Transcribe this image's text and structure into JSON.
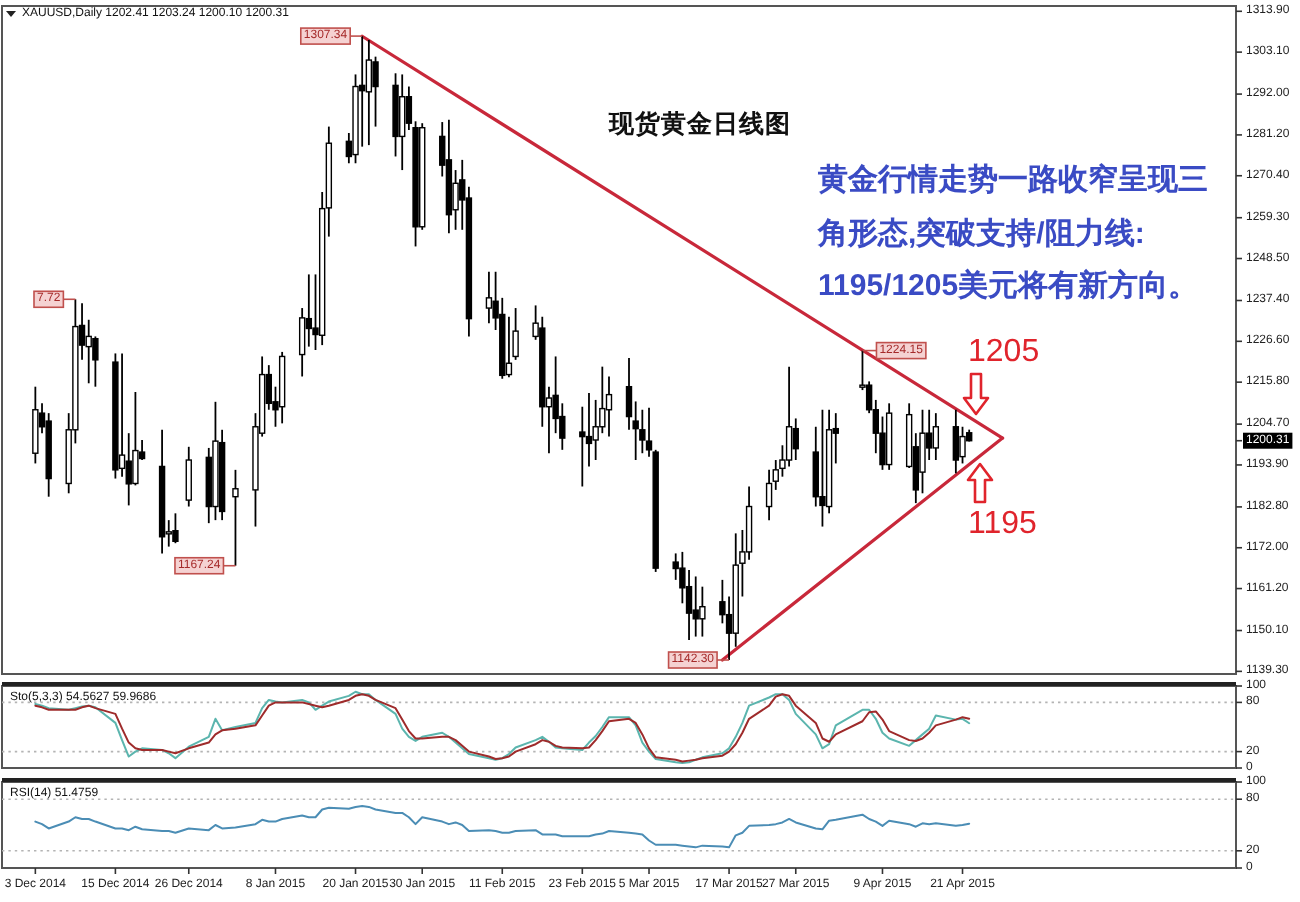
{
  "chart_data": [
    {
      "type": "candlestick",
      "title": "现货黄金日线图",
      "subtitle": "XAUUSD,Daily 1202.41 1203.24 1200.10 1200.31",
      "x": [
        "2014-12-03",
        "2014-12-04",
        "2014-12-05",
        "2014-12-08",
        "2014-12-09",
        "2014-12-10",
        "2014-12-11",
        "2014-12-12",
        "2014-12-15",
        "2014-12-16",
        "2014-12-17",
        "2014-12-18",
        "2014-12-19",
        "2014-12-22",
        "2014-12-23",
        "2014-12-24",
        "2014-12-26",
        "2014-12-29",
        "2014-12-30",
        "2014-12-31",
        "2015-01-02",
        "2015-01-05",
        "2015-01-06",
        "2015-01-07",
        "2015-01-08",
        "2015-01-09",
        "2015-01-12",
        "2015-01-13",
        "2015-01-14",
        "2015-01-15",
        "2015-01-16",
        "2015-01-19",
        "2015-01-20",
        "2015-01-21",
        "2015-01-22",
        "2015-01-23",
        "2015-01-26",
        "2015-01-27",
        "2015-01-28",
        "2015-01-29",
        "2015-01-30",
        "2015-02-02",
        "2015-02-03",
        "2015-02-04",
        "2015-02-05",
        "2015-02-06",
        "2015-02-09",
        "2015-02-10",
        "2015-02-11",
        "2015-02-12",
        "2015-02-13",
        "2015-02-16",
        "2015-02-17",
        "2015-02-18",
        "2015-02-19",
        "2015-02-20",
        "2015-02-23",
        "2015-02-24",
        "2015-02-25",
        "2015-02-26",
        "2015-02-27",
        "2015-03-02",
        "2015-03-03",
        "2015-03-04",
        "2015-03-05",
        "2015-03-06",
        "2015-03-09",
        "2015-03-10",
        "2015-03-11",
        "2015-03-12",
        "2015-03-13",
        "2015-03-16",
        "2015-03-17",
        "2015-03-18",
        "2015-03-19",
        "2015-03-20",
        "2015-03-23",
        "2015-03-24",
        "2015-03-25",
        "2015-03-26",
        "2015-03-27",
        "2015-03-30",
        "2015-03-31",
        "2015-04-01",
        "2015-04-02",
        "2015-04-06",
        "2015-04-07",
        "2015-04-08",
        "2015-04-09",
        "2015-04-10",
        "2015-04-13",
        "2015-04-14",
        "2015-04-15",
        "2015-04-16",
        "2015-04-17",
        "2015-04-20",
        "2015-04-21",
        "2015-04-22"
      ],
      "ohlc": [
        [
          1197.0,
          1214.6,
          1194.3,
          1208.5
        ],
        [
          1207.6,
          1210.2,
          1202.3,
          1204.0
        ],
        [
          1205.5,
          1207.6,
          1185.5,
          1190.3
        ],
        [
          1189.0,
          1207.6,
          1186.4,
          1203.2
        ],
        [
          1203.2,
          1237.72,
          1199.6,
          1230.5
        ],
        [
          1230.8,
          1236.7,
          1221.7,
          1225.6
        ],
        [
          1225.2,
          1232.3,
          1215.5,
          1227.9
        ],
        [
          1227.3,
          1227.9,
          1214.6,
          1221.7
        ],
        [
          1221.1,
          1223.4,
          1190.3,
          1192.6
        ],
        [
          1193.0,
          1223.4,
          1190.8,
          1196.5
        ],
        [
          1194.9,
          1202.3,
          1183.2,
          1188.9
        ],
        [
          1189.0,
          1213.2,
          1188.5,
          1197.7
        ],
        [
          1197.3,
          1200.5,
          1195.2,
          1195.6
        ],
        [
          1193.5,
          1203.2,
          1170.5,
          1174.9
        ],
        [
          1175.8,
          1179.3,
          1172.3,
          1176.2
        ],
        [
          1176.5,
          1181.1,
          1173.2,
          1173.7
        ],
        [
          1184.6,
          1198.7,
          1182.9,
          1195.2
        ],
        [
          1195.9,
          1198.4,
          1178.5,
          1182.9
        ],
        [
          1182.9,
          1210.6,
          1179.3,
          1200.2
        ],
        [
          1199.8,
          1203.2,
          1179.3,
          1181.6
        ],
        [
          1185.5,
          1192.6,
          1167.24,
          1187.6
        ],
        [
          1187.3,
          1207.6,
          1177.6,
          1204.0
        ],
        [
          1202.3,
          1222.6,
          1201.4,
          1217.8
        ],
        [
          1217.8,
          1220.3,
          1208.5,
          1210.2
        ],
        [
          1210.6,
          1214.6,
          1204.0,
          1208.5
        ],
        [
          1209.3,
          1223.8,
          1204.9,
          1222.6
        ],
        [
          1223.1,
          1235.4,
          1217.3,
          1232.8
        ],
        [
          1232.6,
          1244.3,
          1225.2,
          1230.0
        ],
        [
          1230.1,
          1244.3,
          1224.3,
          1228.4
        ],
        [
          1228.2,
          1266.1,
          1225.6,
          1261.7
        ],
        [
          1261.9,
          1283.4,
          1254.3,
          1279.0
        ],
        [
          1279.5,
          1281.7,
          1273.7,
          1275.5
        ],
        [
          1276.0,
          1297.2,
          1273.7,
          1294.0
        ],
        [
          1294.3,
          1307.34,
          1278.1,
          1292.9
        ],
        [
          1292.6,
          1306.3,
          1278.5,
          1301.0
        ],
        [
          1300.5,
          1301.9,
          1283.4,
          1294.0
        ],
        [
          1294.3,
          1297.5,
          1275.5,
          1280.8
        ],
        [
          1280.8,
          1297.2,
          1271.9,
          1291.3
        ],
        [
          1291.3,
          1294.0,
          1282.5,
          1284.3
        ],
        [
          1283.1,
          1284.8,
          1251.7,
          1256.9
        ],
        [
          1256.9,
          1284.3,
          1256.1,
          1283.1
        ],
        [
          1280.8,
          1284.6,
          1270.2,
          1273.2
        ],
        [
          1274.6,
          1285.2,
          1255.2,
          1260.1
        ],
        [
          1261.4,
          1271.9,
          1256.1,
          1268.4
        ],
        [
          1269.3,
          1274.6,
          1256.1,
          1264.0
        ],
        [
          1264.5,
          1267.5,
          1227.9,
          1232.6
        ],
        [
          1235.4,
          1245.0,
          1231.4,
          1238.1
        ],
        [
          1237.2,
          1245.0,
          1229.6,
          1232.8
        ],
        [
          1233.7,
          1238.1,
          1216.7,
          1217.6
        ],
        [
          1217.8,
          1233.1,
          1217.1,
          1220.8
        ],
        [
          1222.6,
          1235.4,
          1221.7,
          1229.3
        ],
        [
          1227.9,
          1236.1,
          1227.0,
          1231.4
        ],
        [
          1230.1,
          1233.1,
          1204.0,
          1209.3
        ],
        [
          1209.3,
          1214.6,
          1197.0,
          1211.6
        ],
        [
          1212.3,
          1222.6,
          1202.3,
          1206.2
        ],
        [
          1206.7,
          1210.2,
          1197.9,
          1201.0
        ],
        [
          1202.6,
          1209.3,
          1188.2,
          1201.4
        ],
        [
          1201.4,
          1212.9,
          1193.5,
          1199.6
        ],
        [
          1200.5,
          1211.1,
          1195.2,
          1204.0
        ],
        [
          1204.0,
          1219.9,
          1202.3,
          1208.8
        ],
        [
          1208.5,
          1217.3,
          1201.4,
          1212.5
        ],
        [
          1214.6,
          1222.2,
          1203.2,
          1206.7
        ],
        [
          1205.5,
          1210.7,
          1195.2,
          1203.5
        ],
        [
          1203.2,
          1208.5,
          1197.0,
          1200.5
        ],
        [
          1200.2,
          1209.0,
          1196.1,
          1197.9
        ],
        [
          1197.3,
          1197.9,
          1165.6,
          1166.6
        ],
        [
          1168.2,
          1170.5,
          1163.5,
          1166.5
        ],
        [
          1166.6,
          1170.9,
          1157.3,
          1161.4
        ],
        [
          1161.7,
          1166.1,
          1147.6,
          1154.7
        ],
        [
          1155.5,
          1164.4,
          1148.5,
          1153.2
        ],
        [
          1153.2,
          1161.7,
          1148.5,
          1156.4
        ],
        [
          1157.7,
          1163.5,
          1152.0,
          1154.3
        ],
        [
          1154.3,
          1159.1,
          1142.3,
          1149.4
        ],
        [
          1149.4,
          1175.8,
          1145.8,
          1167.4
        ],
        [
          1167.9,
          1176.7,
          1159.1,
          1170.9
        ],
        [
          1170.9,
          1188.2,
          1168.8,
          1182.9
        ],
        [
          1182.9,
          1192.6,
          1179.3,
          1189.0
        ],
        [
          1189.6,
          1195.2,
          1187.3,
          1192.6
        ],
        [
          1193.0,
          1199.1,
          1190.8,
          1195.2
        ],
        [
          1195.2,
          1219.9,
          1193.5,
          1204.0
        ],
        [
          1203.5,
          1206.2,
          1195.2,
          1198.2
        ],
        [
          1197.3,
          1204.0,
          1182.9,
          1185.5
        ],
        [
          1185.5,
          1208.5,
          1177.6,
          1183.2
        ],
        [
          1182.9,
          1208.5,
          1181.1,
          1203.2
        ],
        [
          1203.5,
          1207.6,
          1194.3,
          1202.3
        ],
        [
          1214.6,
          1224.15,
          1213.7,
          1215.0
        ],
        [
          1215.0,
          1216.0,
          1207.6,
          1208.5
        ],
        [
          1208.5,
          1211.1,
          1197.0,
          1202.3
        ],
        [
          1202.3,
          1206.7,
          1192.6,
          1194.0
        ],
        [
          1194.0,
          1210.2,
          1192.6,
          1207.6
        ],
        [
          1193.5,
          1210.2,
          1193.1,
          1207.2
        ],
        [
          1198.7,
          1202.3,
          1183.8,
          1187.3
        ],
        [
          1192.0,
          1208.5,
          1186.4,
          1202.3
        ],
        [
          1202.3,
          1208.5,
          1195.2,
          1198.4
        ],
        [
          1198.4,
          1207.6,
          1195.2,
          1204.0
        ],
        [
          1204.0,
          1208.5,
          1191.7,
          1195.2
        ],
        [
          1196.1,
          1204.0,
          1194.3,
          1201.4
        ],
        [
          1202.41,
          1203.24,
          1200.1,
          1200.31
        ]
      ],
      "xlim": [
        "2014-11-28",
        "2015-06-01"
      ],
      "ylim": [
        1138.6,
        1315.3
      ],
      "yticks": [
        {
          "value": 1313.9,
          "label": "1313.90"
        },
        {
          "value": 1303.1,
          "label": "1303.10"
        },
        {
          "value": 1292,
          "label": "1292.00"
        },
        {
          "value": 1281.2,
          "label": "1281.20"
        },
        {
          "value": 1270.4,
          "label": "1270.40"
        },
        {
          "value": 1259.3,
          "label": "1259.30"
        },
        {
          "value": 1248.5,
          "label": "1248.50"
        },
        {
          "value": 1237.4,
          "label": "1237.40"
        },
        {
          "value": 1226.6,
          "label": "1226.60"
        },
        {
          "value": 1215.8,
          "label": "1215.80"
        },
        {
          "value": 1204.7,
          "label": "1204.70"
        },
        {
          "value": 1200.31,
          "label": "1200.31"
        },
        {
          "value": 1193.9,
          "label": "1193.90"
        },
        {
          "value": 1182.8,
          "label": "1182.80"
        },
        {
          "value": 1172,
          "label": "1172.00"
        },
        {
          "value": 1161.2,
          "label": "1161.20"
        },
        {
          "value": 1150.1,
          "label": "1150.10"
        },
        {
          "value": 1139.3,
          "label": "1139.30"
        }
      ],
      "tick_labels": "y",
      "series": [
        {
          "type": "line",
          "color": "#c8283a",
          "x": [
            "2015-01-21",
            "2015-04-27"
          ],
          "values": [
            1307.3,
            1201
          ]
        },
        {
          "type": "line",
          "color": "#c8283a",
          "x": [
            "2015-03-16",
            "2015-04-27"
          ],
          "values": [
            1142.3,
            1201
          ]
        }
      ],
      "annotations": [
        "黄金行情走势一路收窄呈现三",
        "角形态,突破支持/阻力线:",
        "1195/1205美元将有新方向。",
        "1205",
        "1195",
        {
          "text": "7.72",
          "x": "2014-12-09",
          "y": 1237.72
        },
        {
          "text": "1167.24",
          "x": "2015-01-02",
          "y": 1167.24
        },
        {
          "text": "1307.34",
          "x": "2015-01-21",
          "y": 1307.34
        },
        {
          "text": "1142.30",
          "x": "2015-03-17",
          "y": 1142.3
        },
        {
          "text": "1224.15",
          "x": "2015-04-06",
          "y": 1224.15
        }
      ]
    },
    {
      "type": "line",
      "title": "Sto(5,3,3) 54.5627 59.9686",
      "x": [
        "2014-12-03",
        "2014-12-04",
        "2014-12-05",
        "2014-12-08",
        "2014-12-09",
        "2014-12-10",
        "2014-12-11",
        "2014-12-12",
        "2014-12-15",
        "2014-12-16",
        "2014-12-17",
        "2014-12-18",
        "2014-12-19",
        "2014-12-22",
        "2014-12-23",
        "2014-12-24",
        "2014-12-26",
        "2014-12-29",
        "2014-12-30",
        "2014-12-31",
        "2015-01-02",
        "2015-01-05",
        "2015-01-06",
        "2015-01-07",
        "2015-01-08",
        "2015-01-09",
        "2015-01-12",
        "2015-01-13",
        "2015-01-14",
        "2015-01-15",
        "2015-01-16",
        "2015-01-19",
        "2015-01-20",
        "2015-01-21",
        "2015-01-22",
        "2015-01-23",
        "2015-01-26",
        "2015-01-27",
        "2015-01-28",
        "2015-01-29",
        "2015-01-30",
        "2015-02-02",
        "2015-02-03",
        "2015-02-04",
        "2015-02-05",
        "2015-02-06",
        "2015-02-09",
        "2015-02-10",
        "2015-02-11",
        "2015-02-12",
        "2015-02-13",
        "2015-02-16",
        "2015-02-17",
        "2015-02-18",
        "2015-02-19",
        "2015-02-20",
        "2015-02-23",
        "2015-02-24",
        "2015-02-25",
        "2015-02-26",
        "2015-02-27",
        "2015-03-02",
        "2015-03-03",
        "2015-03-04",
        "2015-03-05",
        "2015-03-06",
        "2015-03-09",
        "2015-03-10",
        "2015-03-11",
        "2015-03-12",
        "2015-03-13",
        "2015-03-16",
        "2015-03-17",
        "2015-03-18",
        "2015-03-19",
        "2015-03-20",
        "2015-03-23",
        "2015-03-24",
        "2015-03-25",
        "2015-03-26",
        "2015-03-27",
        "2015-03-30",
        "2015-03-31",
        "2015-04-01",
        "2015-04-02",
        "2015-04-06",
        "2015-04-07",
        "2015-04-08",
        "2015-04-09",
        "2015-04-10",
        "2015-04-13",
        "2015-04-14",
        "2015-04-15",
        "2015-04-16",
        "2015-04-17",
        "2015-04-20",
        "2015-04-21",
        "2015-04-22"
      ],
      "xlim": [
        "2014-11-28",
        "2015-06-01"
      ],
      "ylim": [
        0,
        100
      ],
      "yticks": [
        0,
        20,
        80,
        100
      ],
      "tick_labels": "y",
      "ref_lines": [
        {
          "axis": "y",
          "value": 20,
          "line_style": "dotted",
          "color": "#b4b4b4"
        },
        {
          "axis": "y",
          "value": 80,
          "line_style": "dotted",
          "color": "#b4b4b4"
        }
      ],
      "series": [
        {
          "color": "#5bb5ae",
          "values": [
            78,
            76,
            73,
            71,
            73,
            75,
            76,
            74,
            55,
            34,
            14,
            20,
            24,
            22,
            18,
            12,
            26,
            38,
            60,
            46,
            50,
            55,
            73,
            83,
            81,
            80,
            83,
            80,
            71,
            76,
            81,
            88,
            93,
            90,
            90,
            83,
            66,
            48,
            38,
            33,
            38,
            43,
            38,
            31,
            24,
            17,
            12,
            10,
            12,
            17,
            25,
            34,
            38,
            32,
            25,
            24,
            22,
            31,
            39,
            50,
            62,
            62,
            52,
            31,
            20,
            11,
            7,
            6,
            7,
            10,
            13,
            18,
            24,
            38,
            55,
            76,
            86,
            90,
            90,
            83,
            66,
            41,
            24,
            29,
            52,
            71,
            71,
            60,
            43,
            36,
            27,
            34,
            41,
            48,
            64,
            59,
            60,
            54.5627
          ]
        },
        {
          "color": "#9e2b2b",
          "values": [
            76,
            74,
            71,
            71,
            71,
            74,
            76,
            73,
            66,
            48,
            31,
            24,
            22,
            22,
            20,
            18,
            24,
            31,
            41,
            46,
            48,
            52,
            64,
            76,
            80,
            80,
            80,
            78,
            76,
            74,
            76,
            83,
            88,
            90,
            88,
            83,
            73,
            59,
            45,
            36,
            36,
            38,
            38,
            34,
            27,
            20,
            14,
            11,
            12,
            14,
            20,
            29,
            34,
            32,
            27,
            25,
            24,
            25,
            34,
            45,
            57,
            60,
            55,
            41,
            24,
            13,
            10,
            8,
            9,
            10,
            12,
            15,
            20,
            29,
            43,
            60,
            76,
            87,
            90,
            88,
            76,
            55,
            36,
            32,
            41,
            57,
            68,
            69,
            59,
            45,
            34,
            33,
            36,
            43,
            52,
            59,
            62,
            59.9686
          ]
        }
      ]
    },
    {
      "type": "line",
      "title": "RSI(14) 51.4759",
      "x": [
        "2014-12-03",
        "2014-12-04",
        "2014-12-05",
        "2014-12-08",
        "2014-12-09",
        "2014-12-10",
        "2014-12-11",
        "2014-12-12",
        "2014-12-15",
        "2014-12-16",
        "2014-12-17",
        "2014-12-18",
        "2014-12-19",
        "2014-12-22",
        "2014-12-23",
        "2014-12-24",
        "2014-12-26",
        "2014-12-29",
        "2014-12-30",
        "2014-12-31",
        "2015-01-02",
        "2015-01-05",
        "2015-01-06",
        "2015-01-07",
        "2015-01-08",
        "2015-01-09",
        "2015-01-12",
        "2015-01-13",
        "2015-01-14",
        "2015-01-15",
        "2015-01-16",
        "2015-01-19",
        "2015-01-20",
        "2015-01-21",
        "2015-01-22",
        "2015-01-23",
        "2015-01-26",
        "2015-01-27",
        "2015-01-28",
        "2015-01-29",
        "2015-01-30",
        "2015-02-02",
        "2015-02-03",
        "2015-02-04",
        "2015-02-05",
        "2015-02-06",
        "2015-02-09",
        "2015-02-10",
        "2015-02-11",
        "2015-02-12",
        "2015-02-13",
        "2015-02-16",
        "2015-02-17",
        "2015-02-18",
        "2015-02-19",
        "2015-02-20",
        "2015-02-23",
        "2015-02-24",
        "2015-02-25",
        "2015-02-26",
        "2015-02-27",
        "2015-03-02",
        "2015-03-03",
        "2015-03-04",
        "2015-03-05",
        "2015-03-06",
        "2015-03-09",
        "2015-03-10",
        "2015-03-11",
        "2015-03-12",
        "2015-03-13",
        "2015-03-16",
        "2015-03-17",
        "2015-03-18",
        "2015-03-19",
        "2015-03-20",
        "2015-03-23",
        "2015-03-24",
        "2015-03-25",
        "2015-03-26",
        "2015-03-27",
        "2015-03-30",
        "2015-03-31",
        "2015-04-01",
        "2015-04-02",
        "2015-04-06",
        "2015-04-07",
        "2015-04-08",
        "2015-04-09",
        "2015-04-10",
        "2015-04-13",
        "2015-04-14",
        "2015-04-15",
        "2015-04-16",
        "2015-04-17",
        "2015-04-20",
        "2015-04-21",
        "2015-04-22"
      ],
      "xlim": [
        "2014-11-28",
        "2015-06-01"
      ],
      "ylim": [
        0,
        100
      ],
      "xticks": [
        {
          "value": "2014-12-03",
          "label": "3 Dec 2014"
        },
        {
          "value": "2014-12-15",
          "label": "15 Dec 2014"
        },
        {
          "value": "2014-12-26",
          "label": "26 Dec 2014"
        },
        {
          "value": "2015-01-08",
          "label": "8 Jan 2015"
        },
        {
          "value": "2015-01-20",
          "label": "20 Jan 2015"
        },
        {
          "value": "2015-01-30",
          "label": "30 Jan 2015"
        },
        {
          "value": "2015-02-11",
          "label": "11 Feb 2015"
        },
        {
          "value": "2015-02-23",
          "label": "23 Feb 2015"
        },
        {
          "value": "2015-03-05",
          "label": "5 Mar 2015"
        },
        {
          "value": "2015-03-17",
          "label": "17 Mar 2015"
        },
        {
          "value": "2015-03-27",
          "label": "27 Mar 2015"
        },
        {
          "value": "2015-04-09",
          "label": "9 Apr 2015"
        },
        {
          "value": "2015-04-21",
          "label": "21 Apr 2015"
        }
      ],
      "yticks": [
        0,
        20,
        80,
        100
      ],
      "ref_lines": [
        {
          "axis": "y",
          "value": 20,
          "line_style": "dotted",
          "color": "#b4b4b4"
        },
        {
          "axis": "y",
          "value": 80,
          "line_style": "dotted",
          "color": "#b4b4b4"
        }
      ],
      "series": [
        {
          "color": "#4b8db5",
          "values": [
            54,
            51,
            46,
            54,
            59,
            57,
            57,
            54,
            46,
            46,
            44,
            48,
            45,
            43,
            43,
            41,
            46,
            44,
            50,
            46,
            47,
            51,
            56,
            54,
            54,
            57,
            61,
            59,
            59,
            68,
            70,
            69,
            71,
            72,
            71,
            68,
            64,
            64,
            59,
            51,
            59,
            54,
            51,
            53,
            50,
            43,
            44,
            43,
            41,
            41,
            43,
            44,
            39,
            39,
            39,
            37,
            37,
            37,
            39,
            40,
            43,
            41,
            40,
            39,
            32,
            27,
            27,
            26,
            25,
            24,
            26,
            25,
            24,
            38,
            41,
            49,
            50,
            51,
            53,
            57,
            53,
            46,
            45,
            55,
            56,
            62,
            57,
            54,
            49,
            55,
            51,
            48,
            52,
            51,
            52,
            49,
            50,
            51.4759
          ]
        }
      ]
    }
  ]
}
